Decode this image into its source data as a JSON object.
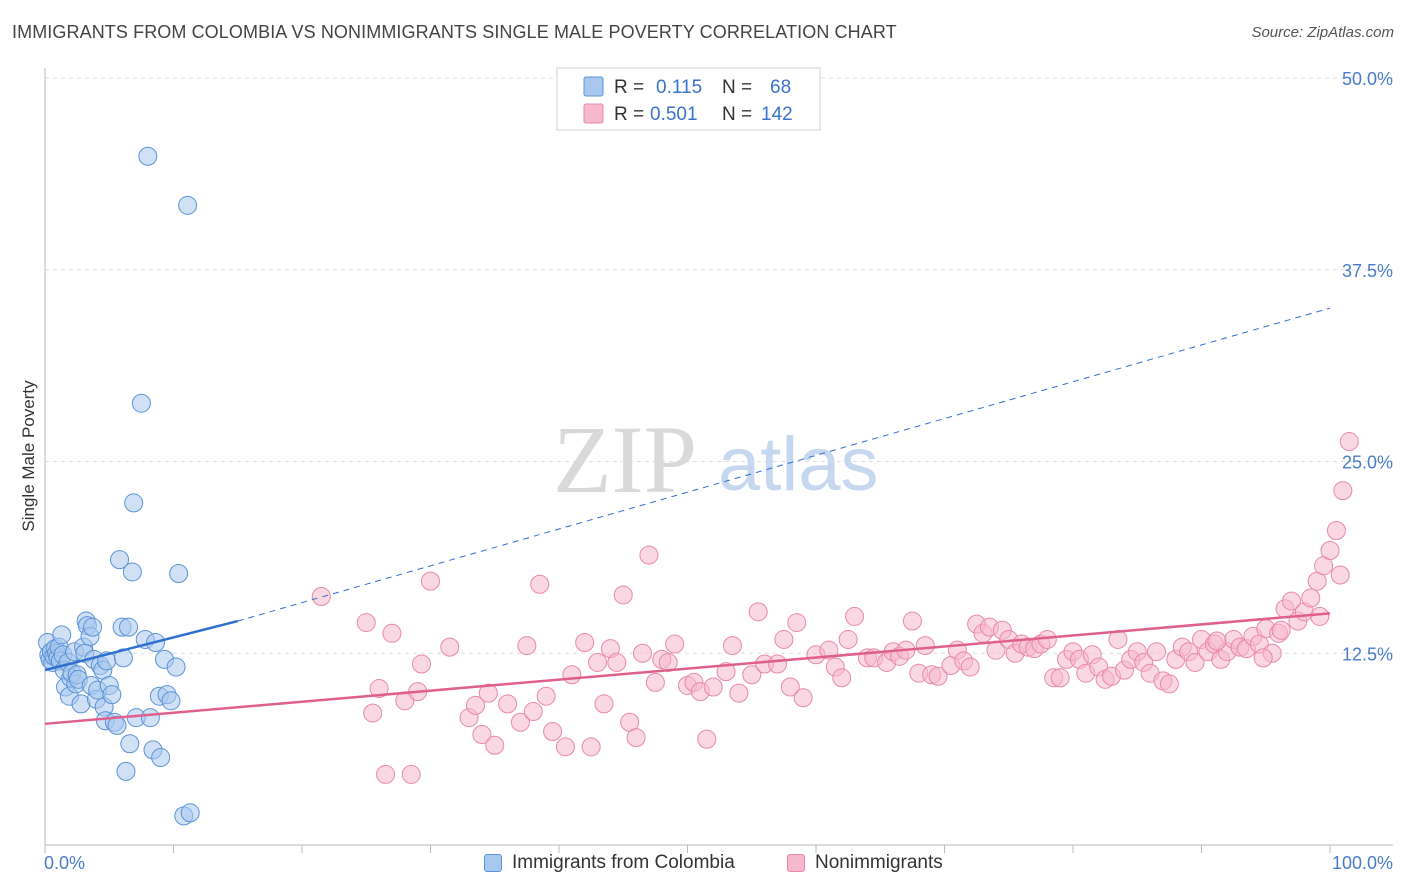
{
  "title": "IMMIGRANTS FROM COLOMBIA VS NONIMMIGRANTS SINGLE MALE POVERTY CORRELATION CHART",
  "source": "Source: ZipAtlas.com",
  "watermark": {
    "zip": "ZIP",
    "atlas": "atlas"
  },
  "legend_top": {
    "rows": [
      {
        "r_label": "R =",
        "r_value": "0.115",
        "n_label": "N =",
        "n_value": "68"
      },
      {
        "r_label": "R =",
        "r_value": "0.501",
        "n_label": "N =",
        "n_value": "142"
      }
    ]
  },
  "colors": {
    "blue_fill": "#a9c8ef",
    "blue_stroke": "#5b93d6",
    "blue_line": "#2f6fcf",
    "pink_fill": "#f6b8cc",
    "pink_stroke": "#e889a8",
    "pink_line": "#e0608d",
    "tick_text": "#4a7cc9",
    "grid": "#dddddd"
  },
  "chart_data": {
    "type": "scatter",
    "title": "IMMIGRANTS FROM COLOMBIA VS NONIMMIGRANTS SINGLE MALE POVERTY CORRELATION CHART",
    "xlabel": "",
    "ylabel": "Single Male Poverty",
    "xlim": [
      0,
      100
    ],
    "ylim": [
      0,
      50
    ],
    "x_tick_labels": [
      "0.0%",
      "100.0%"
    ],
    "y_ticks": [
      12.5,
      25.0,
      37.5,
      50.0
    ],
    "y_tick_labels": [
      "12.5%",
      "25.0%",
      "37.5%",
      "50.0%"
    ],
    "grid": true,
    "legend_position": "top-center",
    "series": [
      {
        "name": "Immigrants from Colombia",
        "R": 0.115,
        "N": 68,
        "points": [
          [
            0.2,
            13.2
          ],
          [
            0.3,
            12.4
          ],
          [
            0.4,
            12.1
          ],
          [
            0.5,
            12.6
          ],
          [
            0.6,
            11.9
          ],
          [
            0.7,
            12.3
          ],
          [
            0.8,
            12.8
          ],
          [
            0.9,
            12.5
          ],
          [
            1.0,
            12.2
          ],
          [
            1.1,
            12.9
          ],
          [
            1.2,
            12.0
          ],
          [
            1.3,
            13.7
          ],
          [
            1.4,
            12.4
          ],
          [
            1.5,
            11.4
          ],
          [
            1.6,
            10.3
          ],
          [
            1.8,
            11.9
          ],
          [
            1.9,
            9.7
          ],
          [
            2.0,
            10.9
          ],
          [
            2.1,
            11.2
          ],
          [
            2.3,
            12.6
          ],
          [
            2.4,
            10.5
          ],
          [
            2.5,
            11.1
          ],
          [
            2.6,
            10.8
          ],
          [
            2.8,
            9.2
          ],
          [
            3.0,
            12.9
          ],
          [
            3.1,
            12.5
          ],
          [
            3.2,
            14.6
          ],
          [
            3.3,
            14.3
          ],
          [
            3.5,
            13.6
          ],
          [
            3.6,
            10.4
          ],
          [
            3.7,
            14.2
          ],
          [
            3.8,
            12.1
          ],
          [
            4.0,
            9.5
          ],
          [
            4.1,
            10.1
          ],
          [
            4.3,
            11.7
          ],
          [
            4.5,
            11.4
          ],
          [
            4.6,
            9.0
          ],
          [
            4.7,
            8.1
          ],
          [
            4.8,
            12.0
          ],
          [
            5.0,
            10.4
          ],
          [
            5.2,
            9.8
          ],
          [
            5.4,
            8.0
          ],
          [
            5.6,
            7.8
          ],
          [
            5.8,
            18.6
          ],
          [
            6.0,
            14.2
          ],
          [
            6.1,
            12.2
          ],
          [
            6.3,
            4.8
          ],
          [
            6.5,
            14.2
          ],
          [
            6.6,
            6.6
          ],
          [
            6.8,
            17.8
          ],
          [
            6.9,
            22.3
          ],
          [
            7.1,
            8.3
          ],
          [
            7.5,
            28.8
          ],
          [
            7.8,
            13.4
          ],
          [
            8.0,
            44.9
          ],
          [
            8.2,
            8.3
          ],
          [
            8.4,
            6.2
          ],
          [
            8.6,
            13.2
          ],
          [
            8.9,
            9.7
          ],
          [
            9.0,
            5.7
          ],
          [
            9.3,
            12.1
          ],
          [
            9.5,
            9.8
          ],
          [
            9.8,
            9.4
          ],
          [
            10.2,
            11.6
          ],
          [
            10.4,
            17.7
          ],
          [
            10.8,
            1.9
          ],
          [
            11.1,
            41.7
          ],
          [
            11.3,
            2.1
          ]
        ],
        "trend_solid": [
          [
            0,
            11.4
          ],
          [
            15,
            14.6
          ]
        ],
        "trend_dashed": [
          [
            15,
            14.6
          ],
          [
            100,
            35.0
          ]
        ]
      },
      {
        "name": "Nonimmigrants",
        "R": 0.501,
        "N": 142,
        "points": [
          [
            21.5,
            16.2
          ],
          [
            25.0,
            14.5
          ],
          [
            25.5,
            8.6
          ],
          [
            26.0,
            10.2
          ],
          [
            26.5,
            4.6
          ],
          [
            27.0,
            13.8
          ],
          [
            28.0,
            9.4
          ],
          [
            28.5,
            4.6
          ],
          [
            29.0,
            10.0
          ],
          [
            29.3,
            11.8
          ],
          [
            30.0,
            17.2
          ],
          [
            31.5,
            12.9
          ],
          [
            33.0,
            8.3
          ],
          [
            33.5,
            9.1
          ],
          [
            34.0,
            7.2
          ],
          [
            34.5,
            9.9
          ],
          [
            35.0,
            6.5
          ],
          [
            36.0,
            9.2
          ],
          [
            37.0,
            8.0
          ],
          [
            37.5,
            13.0
          ],
          [
            38.0,
            8.7
          ],
          [
            38.5,
            17.0
          ],
          [
            39.0,
            9.7
          ],
          [
            39.5,
            7.4
          ],
          [
            40.5,
            6.4
          ],
          [
            41.0,
            11.1
          ],
          [
            42.0,
            13.2
          ],
          [
            42.5,
            6.4
          ],
          [
            43.0,
            11.9
          ],
          [
            43.5,
            9.2
          ],
          [
            44.0,
            12.8
          ],
          [
            44.5,
            11.9
          ],
          [
            45.0,
            16.3
          ],
          [
            45.5,
            8.0
          ],
          [
            46.0,
            7.0
          ],
          [
            46.5,
            12.5
          ],
          [
            47.0,
            18.9
          ],
          [
            47.5,
            10.6
          ],
          [
            48.0,
            12.1
          ],
          [
            48.5,
            11.9
          ],
          [
            49.0,
            13.1
          ],
          [
            50.0,
            10.4
          ],
          [
            50.5,
            10.6
          ],
          [
            51.0,
            10.0
          ],
          [
            51.5,
            6.9
          ],
          [
            52.0,
            10.3
          ],
          [
            53.0,
            11.3
          ],
          [
            53.5,
            13.0
          ],
          [
            54.0,
            9.9
          ],
          [
            55.0,
            11.1
          ],
          [
            55.5,
            15.2
          ],
          [
            56.0,
            11.8
          ],
          [
            57.0,
            11.8
          ],
          [
            57.5,
            13.4
          ],
          [
            58.0,
            10.3
          ],
          [
            58.5,
            14.5
          ],
          [
            59.0,
            9.6
          ],
          [
            60.0,
            12.4
          ],
          [
            61.0,
            12.7
          ],
          [
            61.5,
            11.6
          ],
          [
            62.0,
            10.9
          ],
          [
            62.5,
            13.4
          ],
          [
            63.0,
            14.9
          ],
          [
            64.0,
            12.2
          ],
          [
            64.5,
            12.2
          ],
          [
            65.5,
            11.9
          ],
          [
            66.0,
            12.6
          ],
          [
            66.5,
            12.3
          ],
          [
            67.0,
            12.7
          ],
          [
            67.5,
            14.6
          ],
          [
            68.0,
            11.2
          ],
          [
            68.5,
            13.0
          ],
          [
            69.0,
            11.1
          ],
          [
            69.5,
            11.0
          ],
          [
            70.5,
            11.7
          ],
          [
            71.0,
            12.7
          ],
          [
            71.5,
            12.0
          ],
          [
            72.0,
            11.6
          ],
          [
            72.5,
            14.4
          ],
          [
            73.0,
            13.8
          ],
          [
            73.5,
            14.2
          ],
          [
            74.0,
            12.7
          ],
          [
            74.5,
            14.0
          ],
          [
            75.0,
            13.4
          ],
          [
            75.5,
            12.5
          ],
          [
            76.0,
            13.1
          ],
          [
            76.5,
            12.9
          ],
          [
            77.0,
            12.8
          ],
          [
            77.5,
            13.1
          ],
          [
            78.0,
            13.4
          ],
          [
            78.5,
            10.9
          ],
          [
            79.0,
            10.9
          ],
          [
            79.5,
            12.1
          ],
          [
            80.0,
            12.6
          ],
          [
            80.5,
            12.1
          ],
          [
            81.0,
            11.2
          ],
          [
            81.5,
            12.4
          ],
          [
            82.0,
            11.6
          ],
          [
            82.5,
            10.8
          ],
          [
            83.0,
            11.0
          ],
          [
            83.5,
            13.4
          ],
          [
            84.0,
            11.4
          ],
          [
            84.5,
            12.1
          ],
          [
            85.0,
            12.6
          ],
          [
            85.5,
            11.9
          ],
          [
            86.0,
            11.2
          ],
          [
            86.5,
            12.6
          ],
          [
            87.0,
            10.7
          ],
          [
            87.5,
            10.5
          ],
          [
            88.0,
            12.1
          ],
          [
            88.5,
            12.9
          ],
          [
            89.0,
            12.6
          ],
          [
            89.5,
            11.9
          ],
          [
            90.0,
            13.4
          ],
          [
            90.5,
            12.6
          ],
          [
            91.0,
            13.1
          ],
          [
            91.5,
            12.1
          ],
          [
            92.0,
            12.6
          ],
          [
            92.5,
            13.4
          ],
          [
            93.0,
            12.9
          ],
          [
            93.5,
            12.8
          ],
          [
            94.0,
            13.6
          ],
          [
            94.5,
            13.1
          ],
          [
            95.0,
            14.1
          ],
          [
            95.5,
            12.5
          ],
          [
            96.0,
            13.8
          ],
          [
            96.5,
            15.4
          ],
          [
            97.0,
            15.9
          ],
          [
            97.5,
            14.6
          ],
          [
            98.0,
            15.2
          ],
          [
            98.5,
            16.1
          ],
          [
            99.0,
            17.2
          ],
          [
            99.5,
            18.2
          ],
          [
            100.0,
            19.2
          ],
          [
            100.5,
            20.5
          ],
          [
            101.0,
            23.1
          ],
          [
            101.5,
            26.3
          ],
          [
            100.8,
            17.6
          ],
          [
            99.2,
            14.9
          ],
          [
            96.2,
            14.0
          ],
          [
            94.8,
            12.2
          ],
          [
            91.2,
            13.3
          ]
        ],
        "trend_solid": [
          [
            0,
            7.9
          ],
          [
            100,
            15.1
          ]
        ]
      }
    ]
  },
  "bottom_legend": [
    {
      "label": "Immigrants from Colombia"
    },
    {
      "label": "Nonimmigrants"
    }
  ]
}
